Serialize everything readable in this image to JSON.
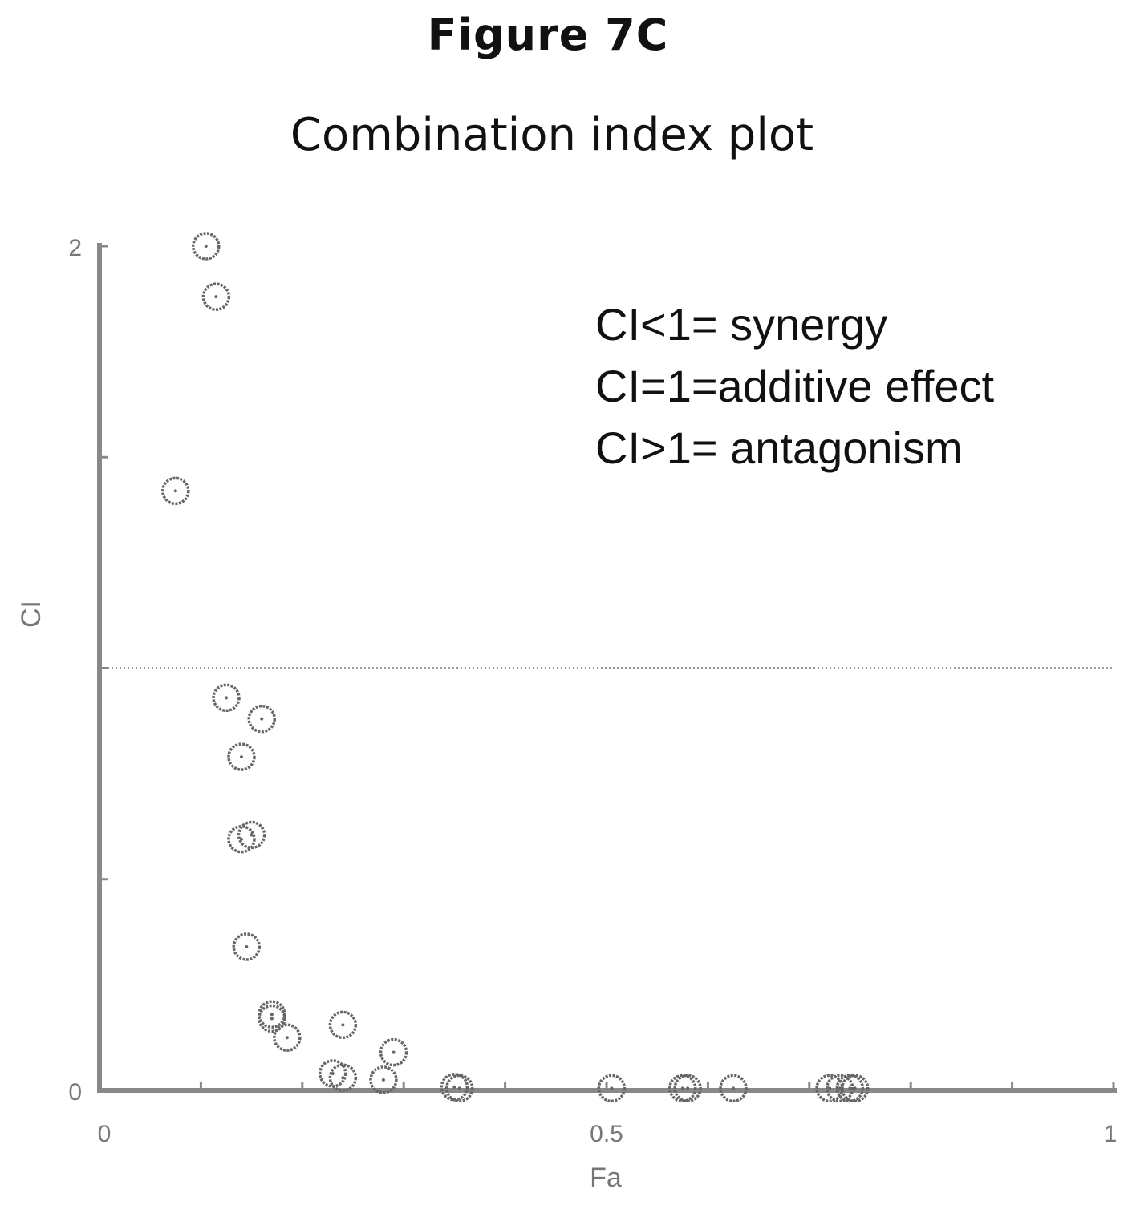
{
  "figure": {
    "title": "Figure 7C"
  },
  "legend_text": [
    "CI<1= synergy",
    "CI=1=additive effect",
    "CI>1= antagonism"
  ],
  "chart_data": {
    "type": "scatter",
    "title": "Combination index plot",
    "xlabel": "Fa",
    "ylabel": "CI",
    "xlim": [
      0,
      1
    ],
    "ylim": [
      0,
      2
    ],
    "x_tick_labels": [
      {
        "value": 0,
        "label": "0"
      },
      {
        "value": 0.5,
        "label": "0.5"
      },
      {
        "value": 1,
        "label": "1"
      }
    ],
    "y_tick_labels": [
      {
        "value": 0,
        "label": "0"
      },
      {
        "value": 2,
        "label": "2"
      }
    ],
    "x_minor_ticks": [
      0.1,
      0.2,
      0.3,
      0.4,
      0.5,
      0.6,
      0.7,
      0.8,
      0.9,
      1.0
    ],
    "y_minor_ticks": [
      0.5,
      1.0,
      1.5,
      2.0
    ],
    "reference_line": {
      "y": 1.0,
      "style": "dotted"
    },
    "grid": false,
    "marker_color": "#666666",
    "series": [
      {
        "points": [
          {
            "x": 0.105,
            "y": 2.0
          },
          {
            "x": 0.115,
            "y": 1.88
          },
          {
            "x": 0.075,
            "y": 1.42
          },
          {
            "x": 0.125,
            "y": 0.93
          },
          {
            "x": 0.16,
            "y": 0.88
          },
          {
            "x": 0.14,
            "y": 0.79
          },
          {
            "x": 0.14,
            "y": 0.595
          },
          {
            "x": 0.15,
            "y": 0.605
          },
          {
            "x": 0.145,
            "y": 0.34
          },
          {
            "x": 0.17,
            "y": 0.18
          },
          {
            "x": 0.17,
            "y": 0.17
          },
          {
            "x": 0.185,
            "y": 0.125
          },
          {
            "x": 0.24,
            "y": 0.155
          },
          {
            "x": 0.23,
            "y": 0.04
          },
          {
            "x": 0.24,
            "y": 0.03
          },
          {
            "x": 0.28,
            "y": 0.025
          },
          {
            "x": 0.29,
            "y": 0.09
          },
          {
            "x": 0.35,
            "y": 0.008
          },
          {
            "x": 0.355,
            "y": 0.005
          },
          {
            "x": 0.505,
            "y": 0.005
          },
          {
            "x": 0.575,
            "y": 0.005
          },
          {
            "x": 0.58,
            "y": 0.005
          },
          {
            "x": 0.625,
            "y": 0.005
          },
          {
            "x": 0.72,
            "y": 0.005
          },
          {
            "x": 0.73,
            "y": 0.005
          },
          {
            "x": 0.74,
            "y": 0.005
          },
          {
            "x": 0.745,
            "y": 0.005
          }
        ]
      }
    ]
  }
}
